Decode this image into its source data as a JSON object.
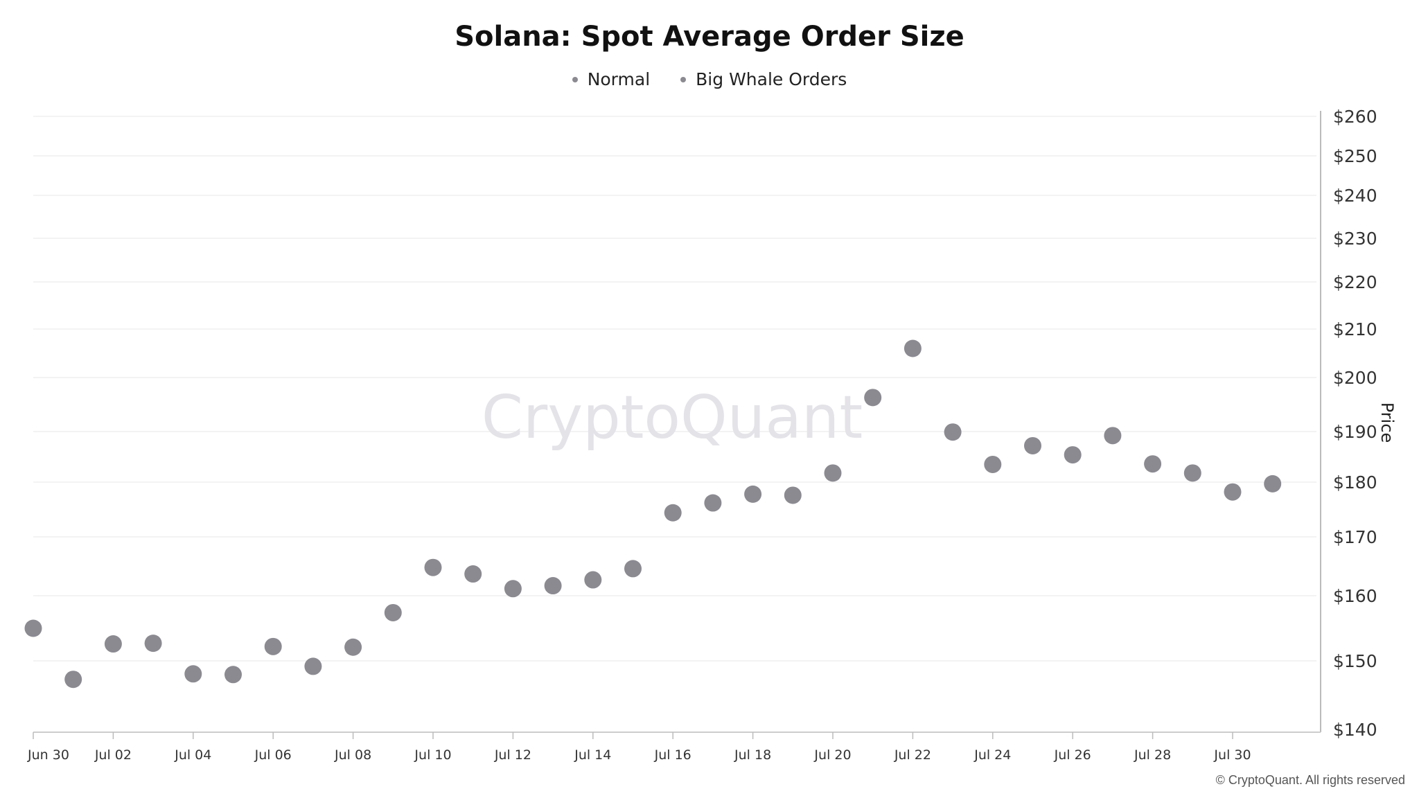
{
  "chart_data": {
    "type": "scatter",
    "title": "Solana: Spot Average Order Size",
    "legend": [
      "Normal",
      "Big Whale Orders"
    ],
    "legend_placement": "top-center",
    "y_axis_label": "Price",
    "y_axis_position": "right",
    "y_ticks": [
      "$140",
      "$150",
      "$160",
      "$170",
      "$180",
      "$190",
      "$200",
      "$210",
      "$220",
      "$230",
      "$240",
      "$250",
      "$260"
    ],
    "y_tick_values": [
      140,
      150,
      160,
      170,
      180,
      190,
      200,
      210,
      220,
      230,
      240,
      250,
      260
    ],
    "ylim": [
      140,
      260
    ],
    "x_ticks": [
      "Jun 30",
      "Jul 02",
      "Jul 04",
      "Jul 06",
      "Jul 08",
      "Jul 10",
      "Jul 12",
      "Jul 14",
      "Jul 16",
      "Jul 18",
      "Jul 20",
      "Jul 22",
      "Jul 24",
      "Jul 26",
      "Jul 28",
      "Jul 30"
    ],
    "grid": true,
    "point_color": "#8b8a91",
    "series": [
      {
        "x": [
          "Jun 30",
          "Jul 01",
          "Jul 02",
          "Jul 03",
          "Jul 04",
          "Jul 05",
          "Jul 06",
          "Jul 07",
          "Jul 08",
          "Jul 09",
          "Jul 10",
          "Jul 11",
          "Jul 12",
          "Jul 13",
          "Jul 14",
          "Jul 15",
          "Jul 16",
          "Jul 17",
          "Jul 18",
          "Jul 19",
          "Jul 20",
          "Jul 21",
          "Jul 22",
          "Jul 23",
          "Jul 24",
          "Jul 25",
          "Jul 26",
          "Jul 27",
          "Jul 28",
          "Jul 29",
          "Jul 30",
          "Jul 31"
        ],
        "values": [
          155.0,
          147.3,
          152.6,
          152.7,
          148.1,
          148.0,
          152.2,
          149.2,
          152.1,
          157.4,
          164.8,
          163.7,
          161.2,
          161.7,
          162.7,
          164.6,
          174.4,
          176.2,
          177.8,
          177.6,
          181.8,
          196.3,
          206.0,
          189.9,
          183.5,
          187.2,
          185.4,
          189.2,
          183.6,
          181.8,
          178.2,
          179.7
        ]
      }
    ]
  },
  "watermark": "CryptoQuant",
  "copyright": "© CryptoQuant. All rights reserved"
}
